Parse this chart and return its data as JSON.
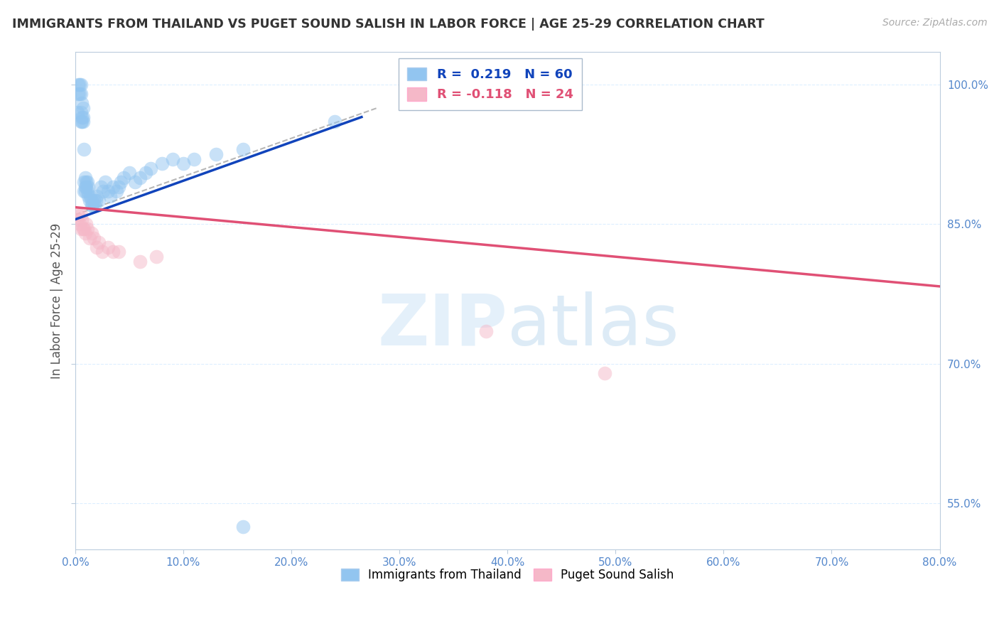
{
  "title": "IMMIGRANTS FROM THAILAND VS PUGET SOUND SALISH IN LABOR FORCE | AGE 25-29 CORRELATION CHART",
  "source": "Source: ZipAtlas.com",
  "ylabel": "In Labor Force | Age 25-29",
  "xlim": [
    0.0,
    0.8
  ],
  "ylim": [
    0.5,
    1.035
  ],
  "xticks": [
    0.0,
    0.1,
    0.2,
    0.3,
    0.4,
    0.5,
    0.6,
    0.7,
    0.8
  ],
  "yticks": [
    0.55,
    0.7,
    0.85,
    1.0
  ],
  "ytick_labels": [
    "55.0%",
    "70.0%",
    "85.0%",
    "100.0%"
  ],
  "xtick_labels": [
    "0.0%",
    "10.0%",
    "20.0%",
    "30.0%",
    "40.0%",
    "50.0%",
    "60.0%",
    "70.0%",
    "80.0%"
  ],
  "blue_color": "#92c5f0",
  "pink_color": "#f5b8c8",
  "blue_line_color": "#1144bb",
  "pink_line_color": "#e05075",
  "watermark_zip": "ZIP",
  "watermark_atlas": "atlas",
  "blue_scatter_x": [
    0.002,
    0.003,
    0.003,
    0.004,
    0.004,
    0.005,
    0.005,
    0.005,
    0.005,
    0.006,
    0.006,
    0.006,
    0.007,
    0.007,
    0.007,
    0.008,
    0.008,
    0.008,
    0.009,
    0.009,
    0.009,
    0.01,
    0.01,
    0.011,
    0.011,
    0.012,
    0.012,
    0.013,
    0.014,
    0.015,
    0.015,
    0.016,
    0.017,
    0.018,
    0.019,
    0.02,
    0.022,
    0.024,
    0.026,
    0.028,
    0.03,
    0.032,
    0.035,
    0.038,
    0.04,
    0.042,
    0.045,
    0.05,
    0.055,
    0.06,
    0.065,
    0.07,
    0.08,
    0.09,
    0.1,
    0.11,
    0.13,
    0.155,
    0.155,
    0.24
  ],
  "blue_scatter_y": [
    0.97,
    0.99,
    1.0,
    0.99,
    1.0,
    1.0,
    0.99,
    0.97,
    0.96,
    0.96,
    0.98,
    0.965,
    0.975,
    0.96,
    0.965,
    0.885,
    0.895,
    0.93,
    0.885,
    0.89,
    0.9,
    0.895,
    0.89,
    0.885,
    0.895,
    0.88,
    0.89,
    0.875,
    0.88,
    0.87,
    0.875,
    0.87,
    0.875,
    0.87,
    0.875,
    0.88,
    0.875,
    0.89,
    0.885,
    0.895,
    0.885,
    0.88,
    0.89,
    0.885,
    0.89,
    0.895,
    0.9,
    0.905,
    0.895,
    0.9,
    0.905,
    0.91,
    0.915,
    0.92,
    0.915,
    0.92,
    0.925,
    0.93,
    0.525,
    0.96
  ],
  "pink_scatter_x": [
    0.002,
    0.003,
    0.004,
    0.005,
    0.005,
    0.006,
    0.007,
    0.008,
    0.009,
    0.01,
    0.011,
    0.013,
    0.015,
    0.017,
    0.02,
    0.022,
    0.025,
    0.03,
    0.035,
    0.04,
    0.06,
    0.075,
    0.38,
    0.49
  ],
  "pink_scatter_y": [
    0.855,
    0.86,
    0.85,
    0.86,
    0.845,
    0.855,
    0.845,
    0.845,
    0.84,
    0.85,
    0.845,
    0.835,
    0.84,
    0.835,
    0.825,
    0.83,
    0.82,
    0.825,
    0.82,
    0.82,
    0.81,
    0.815,
    0.735,
    0.69
  ],
  "blue_trend_x": [
    0.0,
    0.265
  ],
  "blue_trend_y": [
    0.855,
    0.965
  ],
  "pink_trend_x": [
    0.0,
    0.8
  ],
  "pink_trend_y": [
    0.868,
    0.783
  ],
  "ref_line_x": [
    0.0,
    0.28
  ],
  "ref_line_y": [
    0.86,
    0.975
  ]
}
